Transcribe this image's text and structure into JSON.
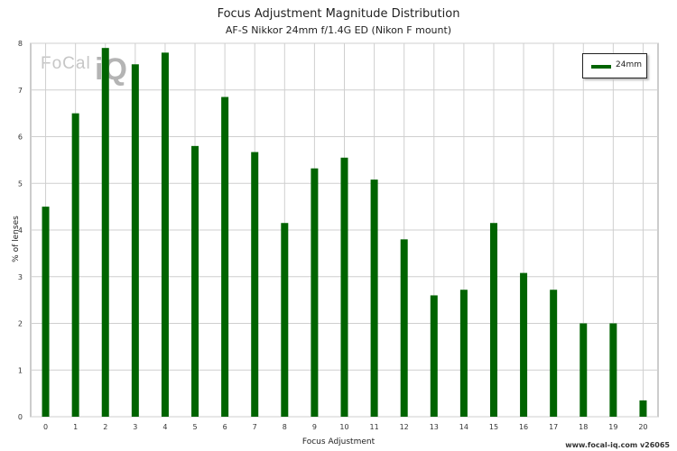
{
  "chart_data": {
    "type": "bar",
    "title": "Focus Adjustment Magnitude Distribution",
    "subtitle": "AF-S Nikkor 24mm f/1.4G ED (Nikon F mount)",
    "xlabel": "Focus Adjustment",
    "ylabel": "% of lenses",
    "ylim": [
      0,
      8
    ],
    "yticks": [
      "0",
      "1",
      "2",
      "3",
      "4",
      "5",
      "6",
      "7",
      "8"
    ],
    "categories": [
      "0",
      "1",
      "2",
      "3",
      "4",
      "5",
      "6",
      "7",
      "8",
      "9",
      "10",
      "11",
      "12",
      "13",
      "14",
      "15",
      "16",
      "17",
      "18",
      "19",
      "20"
    ],
    "series": [
      {
        "name": "24mm",
        "color": "#006400",
        "values": [
          4.5,
          6.5,
          7.9,
          7.55,
          7.8,
          5.8,
          6.85,
          5.67,
          4.15,
          5.32,
          5.55,
          5.08,
          3.8,
          2.6,
          2.72,
          4.15,
          3.08,
          2.72,
          2.0,
          2.0,
          0.35
        ]
      }
    ],
    "grid": true,
    "legend_position": "top-right"
  },
  "branding": {
    "logo_text": "FoCal",
    "logo_mark": "iQ",
    "credit": "www.focal-iq.com  v26065"
  }
}
